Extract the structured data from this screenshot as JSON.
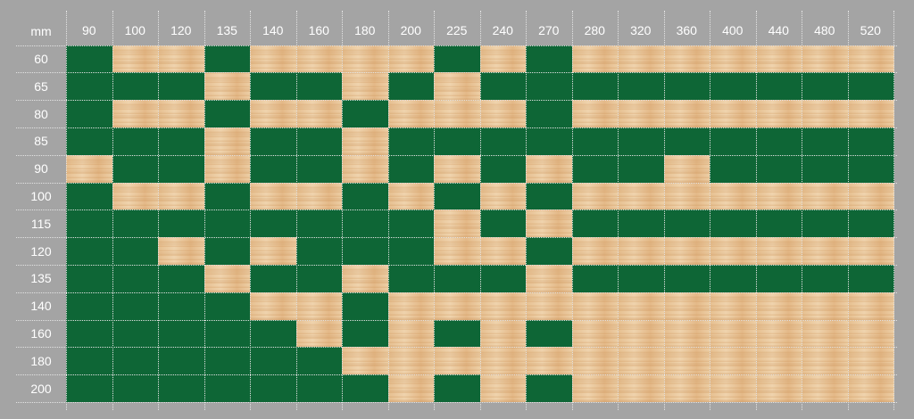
{
  "colors": {
    "available": "#0e6636",
    "unavailable": "#e9c69a",
    "background": "#a4a4a4",
    "text": "#ffffff"
  },
  "chart_data": {
    "type": "heatmap",
    "corner_label": "mm",
    "columns": [
      "90",
      "100",
      "120",
      "135",
      "140",
      "160",
      "180",
      "200",
      "225",
      "240",
      "270",
      "280",
      "320",
      "360",
      "400",
      "440",
      "480",
      "520"
    ],
    "rows": [
      "60",
      "65",
      "80",
      "85",
      "90",
      "100",
      "115",
      "120",
      "135",
      "140",
      "160",
      "180",
      "200"
    ],
    "legend": {
      "1": "green",
      "0": "wood"
    },
    "matrix": [
      [
        1,
        0,
        0,
        1,
        0,
        0,
        0,
        0,
        1,
        0,
        1,
        0,
        0,
        0,
        0,
        0,
        0,
        0
      ],
      [
        1,
        1,
        1,
        0,
        1,
        1,
        0,
        1,
        0,
        1,
        1,
        1,
        1,
        1,
        1,
        1,
        1,
        1
      ],
      [
        1,
        0,
        0,
        1,
        0,
        0,
        1,
        0,
        0,
        0,
        1,
        0,
        0,
        0,
        0,
        0,
        0,
        0
      ],
      [
        1,
        1,
        1,
        0,
        1,
        1,
        0,
        1,
        1,
        1,
        1,
        1,
        1,
        1,
        1,
        1,
        1,
        1
      ],
      [
        0,
        1,
        1,
        0,
        1,
        1,
        0,
        1,
        0,
        1,
        0,
        1,
        1,
        0,
        1,
        1,
        1,
        1
      ],
      [
        1,
        0,
        0,
        1,
        0,
        0,
        1,
        0,
        1,
        0,
        1,
        0,
        0,
        0,
        0,
        0,
        0,
        0
      ],
      [
        1,
        1,
        1,
        1,
        1,
        1,
        1,
        1,
        0,
        1,
        0,
        1,
        1,
        1,
        1,
        1,
        1,
        1
      ],
      [
        1,
        1,
        0,
        1,
        0,
        1,
        1,
        1,
        0,
        0,
        1,
        0,
        0,
        0,
        0,
        0,
        0,
        0
      ],
      [
        1,
        1,
        1,
        0,
        1,
        1,
        0,
        1,
        1,
        1,
        0,
        1,
        1,
        1,
        1,
        1,
        1,
        1
      ],
      [
        1,
        1,
        1,
        1,
        0,
        0,
        1,
        0,
        0,
        0,
        0,
        0,
        0,
        0,
        0,
        0,
        0,
        0
      ],
      [
        1,
        1,
        1,
        1,
        1,
        0,
        1,
        0,
        1,
        0,
        1,
        0,
        0,
        0,
        0,
        0,
        0,
        0
      ],
      [
        1,
        1,
        1,
        1,
        1,
        1,
        0,
        0,
        0,
        0,
        0,
        0,
        0,
        0,
        0,
        0,
        0,
        0
      ],
      [
        1,
        1,
        1,
        1,
        1,
        1,
        1,
        0,
        1,
        0,
        1,
        0,
        0,
        0,
        0,
        0,
        0,
        0
      ]
    ]
  }
}
